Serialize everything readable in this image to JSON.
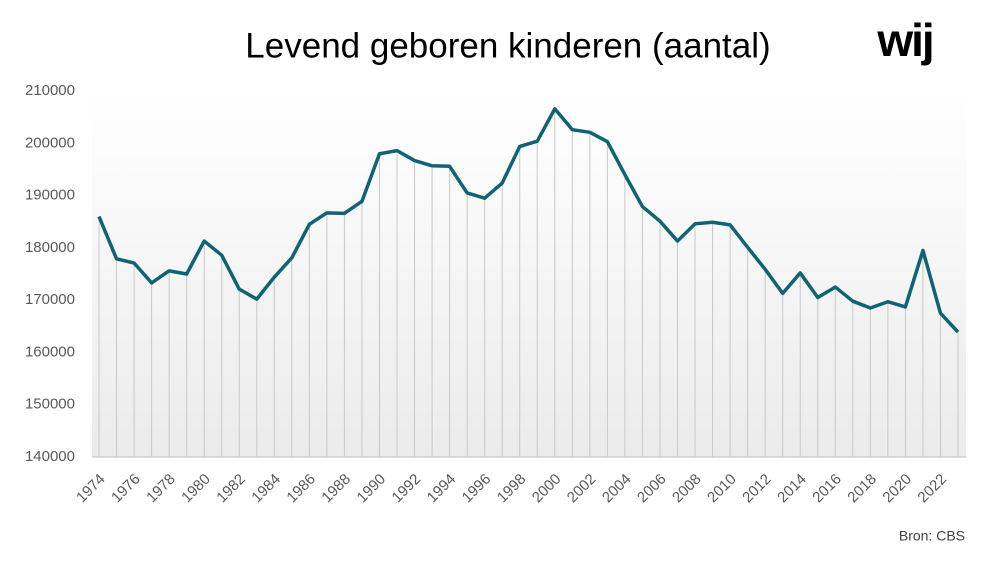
{
  "chart_data": {
    "type": "line",
    "title": "Levend geboren kinderen (aantal)",
    "logo": "wij",
    "source": "Bron: CBS",
    "categories": [
      "1974",
      null,
      "1976",
      null,
      "1978",
      null,
      "1980",
      null,
      "1982",
      null,
      "1984",
      null,
      "1986",
      null,
      "1988",
      null,
      "1990",
      null,
      "1992",
      null,
      "1994",
      null,
      "1996",
      null,
      "1998",
      null,
      "2000",
      null,
      "2002",
      null,
      "2004",
      null,
      "2006",
      null,
      "2008",
      null,
      "2010",
      null,
      "2012",
      null,
      "2014",
      null,
      "2016",
      null,
      "2018",
      null,
      "2020",
      null,
      "2022",
      null
    ],
    "values": [
      186000,
      177900,
      177100,
      173300,
      175600,
      175000,
      181300,
      178600,
      172100,
      170200,
      174400,
      178100,
      184500,
      186700,
      186600,
      188900,
      198000,
      198600,
      196700,
      195700,
      195600,
      190500,
      189500,
      192400,
      199400,
      200400,
      206600,
      202600,
      202100,
      200300,
      194000,
      187900,
      185100,
      181300,
      184600,
      184900,
      184400,
      180100,
      175900,
      171300,
      175200,
      170500,
      172500,
      169800,
      168500,
      169700,
      168700,
      179500,
      167500,
      163900
    ],
    "color": "#0f6375",
    "drop_line_color": "#c8c8c8",
    "ylim": [
      140000,
      210000
    ],
    "yticks": [
      140000,
      150000,
      160000,
      170000,
      180000,
      190000,
      200000,
      210000
    ],
    "grid": false
  }
}
